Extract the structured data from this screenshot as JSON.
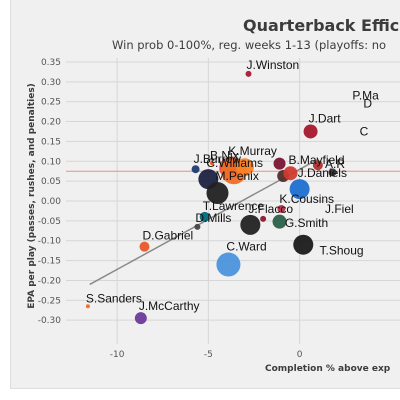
{
  "chart_data": {
    "type": "scatter",
    "title": "Quarterback Effic",
    "subtitle": "Win prob 0-100%, reg. weeks 1-13 (playoffs: no",
    "xlabel": "Completion % above exp",
    "ylabel": "EPA per play (passes, rushes, and penalties)",
    "xlim": [
      -12.8,
      5.5
    ],
    "ylim": [
      -0.36,
      0.36
    ],
    "x_ticks": [
      -10,
      -5,
      0
    ],
    "y_ticks": [
      0.35,
      0.3,
      0.25,
      0.2,
      0.15,
      0.1,
      0.05,
      0.0,
      -0.05,
      -0.1,
      -0.15,
      -0.2,
      -0.25,
      -0.3
    ],
    "x_tick_labels": [
      "-10",
      "-5",
      "0"
    ],
    "y_tick_labels": [
      "0.35",
      "0.30",
      "0.25",
      "0.20",
      "0.15",
      "0.10",
      "0.05",
      "0.00",
      "-0.05",
      "-0.10",
      "-0.15",
      "-0.20",
      "-0.25",
      "-0.30"
    ],
    "grid": true,
    "reference_line_y": 0.075,
    "trend_line": {
      "x": [
        -11.5,
        1.0
      ],
      "y": [
        -0.21,
        0.105
      ]
    },
    "points": [
      {
        "label": "J.Winston",
        "x": -2.8,
        "y": 0.32,
        "size": 3,
        "color": "#a71930"
      },
      {
        "label": "P.Ma",
        "x": 3.0,
        "y": 0.24,
        "size": 0,
        "color": "#e31837"
      },
      {
        "label": "D",
        "x": 3.6,
        "y": 0.22,
        "size": 0,
        "color": "#002244"
      },
      {
        "label": "J.Dart",
        "x": 0.6,
        "y": 0.175,
        "size": 7,
        "color": "#a5172b"
      },
      {
        "label": "C",
        "x": 3.4,
        "y": 0.15,
        "size": 0,
        "color": "#0b162a"
      },
      {
        "label": "B.Nix",
        "x": -4.8,
        "y": 0.095,
        "size": 2,
        "color": "#fb4f14"
      },
      {
        "label": "K.Murray",
        "x": -3.8,
        "y": 0.083,
        "size": 11,
        "color": "#e84a2e"
      },
      {
        "label": "J.Burrow",
        "x": -5.7,
        "y": 0.08,
        "size": 4,
        "color": "#1f3b70"
      },
      {
        "label": "",
        "x": -3.6,
        "y": 0.075,
        "size": 13,
        "color": "#ef6f2a"
      },
      {
        "label": "",
        "x": -3.0,
        "y": 0.085,
        "size": 9,
        "color": "#fc8226"
      },
      {
        "label": "",
        "x": -0.9,
        "y": 0.063,
        "size": 6,
        "color": "#522c2c"
      },
      {
        "label": "B.Mayfield",
        "x": -0.5,
        "y": 0.07,
        "size": 7,
        "color": "#cf3b2f"
      },
      {
        "label": "A.R",
        "x": 1.5,
        "y": 0.068,
        "size": 0,
        "color": "#203731"
      },
      {
        "label": "",
        "x": -1.1,
        "y": 0.094,
        "size": 6,
        "color": "#7a1433"
      },
      {
        "label": "",
        "x": 1.0,
        "y": 0.09,
        "size": 5,
        "color": "#b23030"
      },
      {
        "label": "",
        "x": 1.8,
        "y": 0.072,
        "size": 4,
        "color": "#333333"
      },
      {
        "label": "C.Williams",
        "x": -5.0,
        "y": 0.055,
        "size": 10,
        "color": "#1b2240"
      },
      {
        "label": "M.Penix",
        "x": -4.5,
        "y": 0.02,
        "size": 11,
        "color": "#212121"
      },
      {
        "label": "J.Daniels",
        "x": 0.0,
        "y": 0.03,
        "size": 10,
        "color": "#1e6fd0"
      },
      {
        "label": "T.Lawrence",
        "x": -5.2,
        "y": -0.04,
        "size": 5,
        "color": "#006778"
      },
      {
        "label": "K.Cousins",
        "x": -1.0,
        "y": -0.02,
        "size": 4,
        "color": "#b3334a"
      },
      {
        "label": "J.Fiel",
        "x": 1.5,
        "y": -0.045,
        "size": 0,
        "color": "#125740"
      },
      {
        "label": "",
        "x": -2.0,
        "y": -0.045,
        "size": 3,
        "color": "#8b1a2b"
      },
      {
        "label": "",
        "x": -1.1,
        "y": -0.052,
        "size": 7,
        "color": "#2a5f4a"
      },
      {
        "label": "D.Mills",
        "x": -5.6,
        "y": -0.065,
        "size": 3,
        "color": "#444444"
      },
      {
        "label": "J.Flacco",
        "x": -2.7,
        "y": -0.06,
        "size": 10,
        "color": "#222222"
      },
      {
        "label": "G.Smith",
        "x": -0.7,
        "y": -0.08,
        "size": 0,
        "color": "#000000"
      },
      {
        "label": "",
        "x": 0.2,
        "y": -0.11,
        "size": 10,
        "color": "#1a1a1a"
      },
      {
        "label": "D.Gabriel",
        "x": -8.5,
        "y": -0.115,
        "size": 5,
        "color": "#e55a2b"
      },
      {
        "label": "C.Ward",
        "x": -3.9,
        "y": -0.16,
        "size": 12,
        "color": "#4b92db"
      },
      {
        "label": "T.Shoug",
        "x": 1.2,
        "y": -0.15,
        "size": 0,
        "color": "#000000"
      },
      {
        "label": "S.Sanders",
        "x": -11.6,
        "y": -0.265,
        "size": 2,
        "color": "#f26b21"
      },
      {
        "label": "J.McCarthy",
        "x": -8.7,
        "y": -0.295,
        "size": 6,
        "color": "#6b3a99"
      }
    ]
  }
}
